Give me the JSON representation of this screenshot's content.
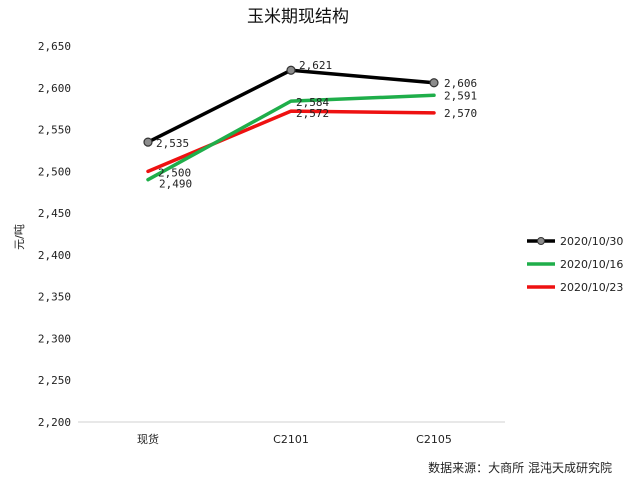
{
  "chart_data": {
    "type": "line",
    "title": "玉米期现结构",
    "xlabel": "",
    "ylabel": "元/吨",
    "categories": [
      "现货",
      "C2101",
      "C2105"
    ],
    "ylim": [
      2200,
      2650
    ],
    "yticks": [
      2200,
      2250,
      2300,
      2350,
      2400,
      2450,
      2500,
      2550,
      2600,
      2650
    ],
    "ytick_labels": [
      "2,200",
      "2,250",
      "2,300",
      "2,350",
      "2,400",
      "2,450",
      "2,500",
      "2,550",
      "2,600",
      "2,650"
    ],
    "grid": false,
    "legend_position": "right",
    "series": [
      {
        "name": "2020/10/30",
        "values": [
          2535,
          2621,
          2606
        ],
        "labels": [
          "2,535",
          "2,621",
          "2,606"
        ],
        "color": "#000000",
        "marker": "circle"
      },
      {
        "name": "2020/10/16",
        "values": [
          2490,
          2584,
          2591
        ],
        "labels": [
          "2,490",
          "2,584",
          "2,591"
        ],
        "color": "#1fae4a",
        "marker": "none"
      },
      {
        "name": "2020/10/23",
        "values": [
          2500,
          2572,
          2570
        ],
        "labels": [
          "2,500",
          "2,572",
          "2,570"
        ],
        "color": "#ee1111",
        "marker": "none"
      }
    ],
    "source": "数据来源：大商所 混沌天成研究院"
  }
}
